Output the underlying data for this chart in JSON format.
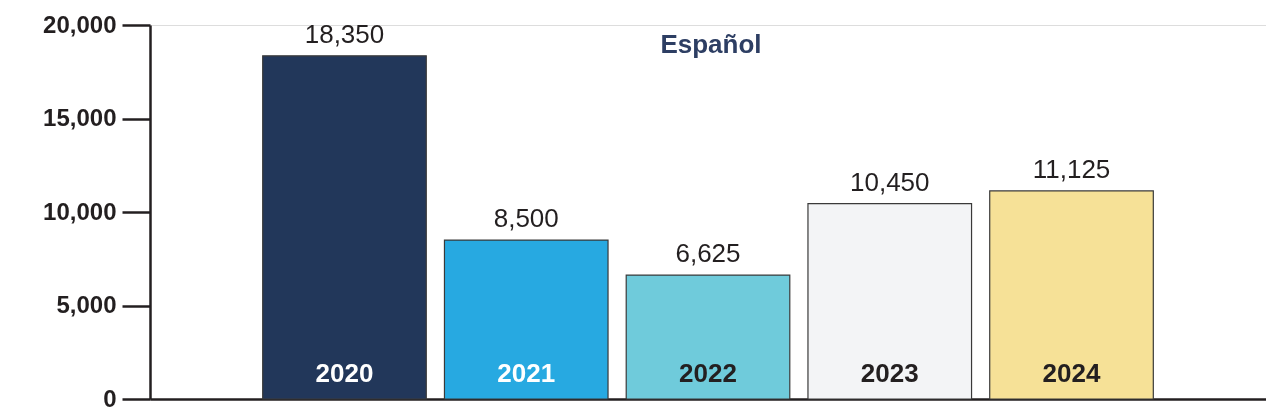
{
  "chart_data": {
    "type": "bar",
    "title": "Español",
    "categories": [
      "2020",
      "2021",
      "2022",
      "2023",
      "2024"
    ],
    "values": [
      18350,
      8500,
      6625,
      10450,
      11125
    ],
    "value_labels": [
      "18,350",
      "8,500",
      "6,625",
      "10,450",
      "11,125"
    ],
    "colors": [
      "#22375a",
      "#27a9e1",
      "#6fcbdb",
      "#f3f4f6",
      "#f6e197"
    ],
    "ylim": [
      0,
      20000
    ],
    "yticks": [
      {
        "value": 0,
        "label": "0"
      },
      {
        "value": 5000,
        "label": "5,000"
      },
      {
        "value": 10000,
        "label": "10,000"
      },
      {
        "value": 15000,
        "label": "15,000"
      },
      {
        "value": 20000,
        "label": "20,000"
      }
    ],
    "grid": false
  }
}
